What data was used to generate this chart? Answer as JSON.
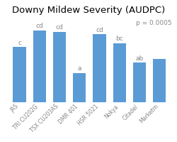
{
  "title": "Downy Mildew Severity (AUDPC)",
  "p_text": "p = 0.0005",
  "categories": [
    "JAS",
    "TRI CU202G",
    "TSX CU203AS",
    "DMR 401",
    "HSR 5021",
    "Nokya",
    "Citadel",
    "Marketm"
  ],
  "values": [
    70,
    91,
    89,
    37,
    86,
    75,
    50,
    55
  ],
  "letters": [
    "c",
    "cd",
    "cd",
    "a",
    "cd",
    "bc",
    "ab",
    ""
  ],
  "bar_color": "#5B9BD5",
  "background_color": "#FFFFFF",
  "ylim": [
    0,
    108
  ],
  "title_fontsize": 9.5,
  "tick_fontsize": 5.5,
  "letter_fontsize": 6.5,
  "p_fontsize": 6.5
}
